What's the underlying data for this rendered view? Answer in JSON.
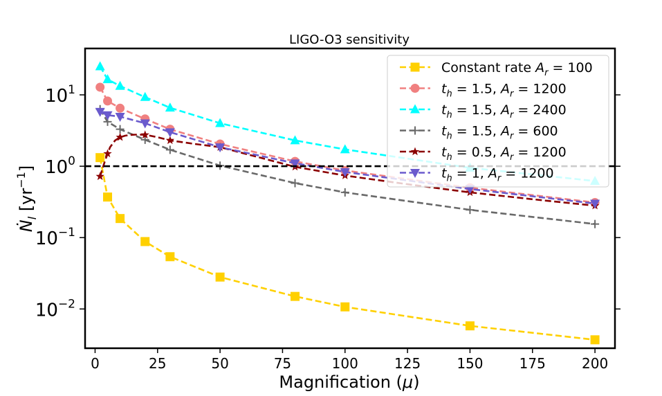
{
  "chart_data": {
    "type": "line",
    "title": "LIGO-O3 sensitivity",
    "xlabel": "Magnification (μ)",
    "ylabel": "Ṅ_l [yr⁻¹]",
    "xlim": [
      -4,
      208
    ],
    "ylim_log10": [
      -2.55,
      1.65
    ],
    "yscale": "log",
    "x_ticks": [
      0,
      25,
      50,
      75,
      100,
      125,
      150,
      175,
      200
    ],
    "x_tick_labels": [
      "0",
      "25",
      "50",
      "75",
      "100",
      "125",
      "150",
      "175",
      "200"
    ],
    "y_ticks": [
      10,
      1,
      0.1,
      0.01
    ],
    "y_tick_labels": [
      {
        "base": "10",
        "exp": "1"
      },
      {
        "base": "10",
        "exp": "0"
      },
      {
        "base": "10",
        "exp": "−1"
      },
      {
        "base": "10",
        "exp": "−2"
      }
    ],
    "reference_line": {
      "y": 1,
      "color": "#000000",
      "style": "dashed"
    },
    "legend_position": "top-right",
    "series": [
      {
        "name": "Constant rate A_r = 100",
        "legend": {
          "pre": "Constant rate ",
          "parts": [
            [
              "A",
              "r"
            ]
          ],
          "post": [
            " = 100"
          ]
        },
        "color": "#ffd000",
        "marker": "square",
        "x": [
          2,
          5,
          10,
          20,
          30,
          50,
          80,
          100,
          150,
          200
        ],
        "y": [
          1.32,
          0.37,
          0.185,
          0.088,
          0.054,
          0.028,
          0.015,
          0.0107,
          0.0058,
          0.0037
        ],
        "curve": null
      },
      {
        "name": "t_h = 1.5, A_r = 1200",
        "legend": {
          "pre": "",
          "parts": [
            [
              "t",
              "h"
            ],
            [
              "A",
              "r"
            ]
          ],
          "post": [
            " = 1.5, ",
            " = 1200"
          ]
        },
        "color": "#f08080",
        "marker": "circle",
        "x": [
          2,
          5,
          10,
          20,
          30,
          50,
          80,
          100,
          150,
          200
        ],
        "y": [
          12.8,
          8.2,
          6.5,
          4.6,
          3.3,
          2.05,
          1.17,
          0.87,
          0.5,
          0.31
        ],
        "curve": null
      },
      {
        "name": "t_h = 1.5, A_r = 2400",
        "legend": {
          "pre": "",
          "parts": [
            [
              "t",
              "h"
            ],
            [
              "A",
              "r"
            ]
          ],
          "post": [
            " = 1.5, ",
            " = 2400"
          ]
        },
        "color": "#00ffff",
        "marker": "triangle-up",
        "x": [
          2,
          5,
          10,
          20,
          30,
          50,
          80,
          100,
          150,
          200
        ],
        "y": [
          25,
          16.5,
          13.3,
          9.3,
          6.6,
          4.0,
          2.3,
          1.72,
          0.95,
          0.62
        ],
        "curve": null
      },
      {
        "name": "t_h = 1.5, A_r = 600",
        "legend": {
          "pre": "",
          "parts": [
            [
              "t",
              "h"
            ],
            [
              "A",
              "r"
            ]
          ],
          "post": [
            " = 1.5, ",
            " = 600"
          ]
        },
        "color": "#696969",
        "marker": "plus",
        "x": [
          2,
          5,
          10,
          20,
          30,
          50,
          80,
          100,
          150,
          200
        ],
        "y": [
          6.3,
          4.2,
          3.3,
          2.35,
          1.7,
          1.02,
          0.58,
          0.43,
          0.245,
          0.155
        ],
        "curve": null
      },
      {
        "name": "t_h = 0.5, A_r = 1200",
        "legend": {
          "pre": "",
          "parts": [
            [
              "t",
              "h"
            ],
            [
              "A",
              "r"
            ]
          ],
          "post": [
            " = 0.5, ",
            " = 1200"
          ]
        },
        "color": "#8b0000",
        "marker": "star",
        "x": [
          2,
          5,
          10,
          20,
          30,
          50,
          80,
          100,
          150,
          200
        ],
        "y": [
          0.72,
          1.5,
          2.55,
          2.75,
          2.3,
          1.85,
          0.98,
          0.74,
          0.43,
          0.28
        ],
        "curve": {
          "x": [
            2,
            4,
            6,
            8,
            10,
            12,
            14,
            16,
            18,
            20,
            22,
            25,
            30,
            40,
            50,
            65,
            80,
            100,
            125,
            150,
            175,
            200
          ],
          "y": [
            0.72,
            1.2,
            1.85,
            2.3,
            2.55,
            2.68,
            2.74,
            2.77,
            2.77,
            2.75,
            2.68,
            2.55,
            2.3,
            2.05,
            1.85,
            1.35,
            0.98,
            0.74,
            0.56,
            0.43,
            0.345,
            0.28
          ]
        }
      },
      {
        "name": "t_h = 1, A_r = 1200",
        "legend": {
          "pre": "",
          "parts": [
            [
              "t",
              "h"
            ],
            [
              "A",
              "r"
            ]
          ],
          "post": [
            " = 1, ",
            " = 1200"
          ]
        },
        "color": "#6a5acd",
        "marker": "triangle-down",
        "x": [
          2,
          5,
          10,
          20,
          30,
          50,
          80,
          100,
          150,
          200
        ],
        "y": [
          5.8,
          5.2,
          4.95,
          4.0,
          3.0,
          1.85,
          1.1,
          0.83,
          0.48,
          0.3
        ],
        "curve": null
      }
    ]
  }
}
